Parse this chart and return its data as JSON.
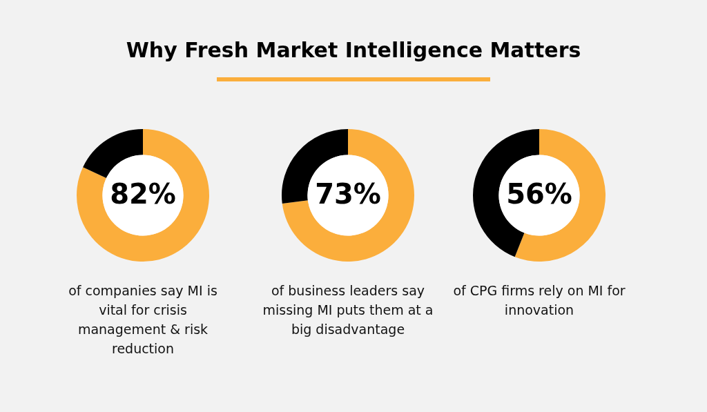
{
  "chart_data": [
    {
      "type": "other",
      "title": "Why Fresh Market Intelligence Matters"
    },
    {
      "type": "donut",
      "categories": [
        null,
        null
      ],
      "values": [
        82,
        18
      ],
      "colors": [
        "#fbae3c",
        "#000000"
      ],
      "value_labels": [
        "82%",
        null
      ],
      "annotations": [
        "of companies say MI is vital for crisis management & risk reduction"
      ]
    },
    {
      "type": "donut",
      "categories": [
        null,
        null
      ],
      "values": [
        73,
        27
      ],
      "colors": [
        "#fbae3c",
        "#000000"
      ],
      "value_labels": [
        "73%",
        null
      ],
      "annotations": [
        "of business leaders say missing MI puts them at a big disadvantage"
      ]
    },
    {
      "type": "donut",
      "categories": [
        null,
        null
      ],
      "values": [
        56,
        44
      ],
      "colors": [
        "#fbae3c",
        "#000000"
      ],
      "value_labels": [
        "56%",
        null
      ],
      "annotations": [
        "of CPG firms rely on MI for innovation"
      ]
    }
  ]
}
